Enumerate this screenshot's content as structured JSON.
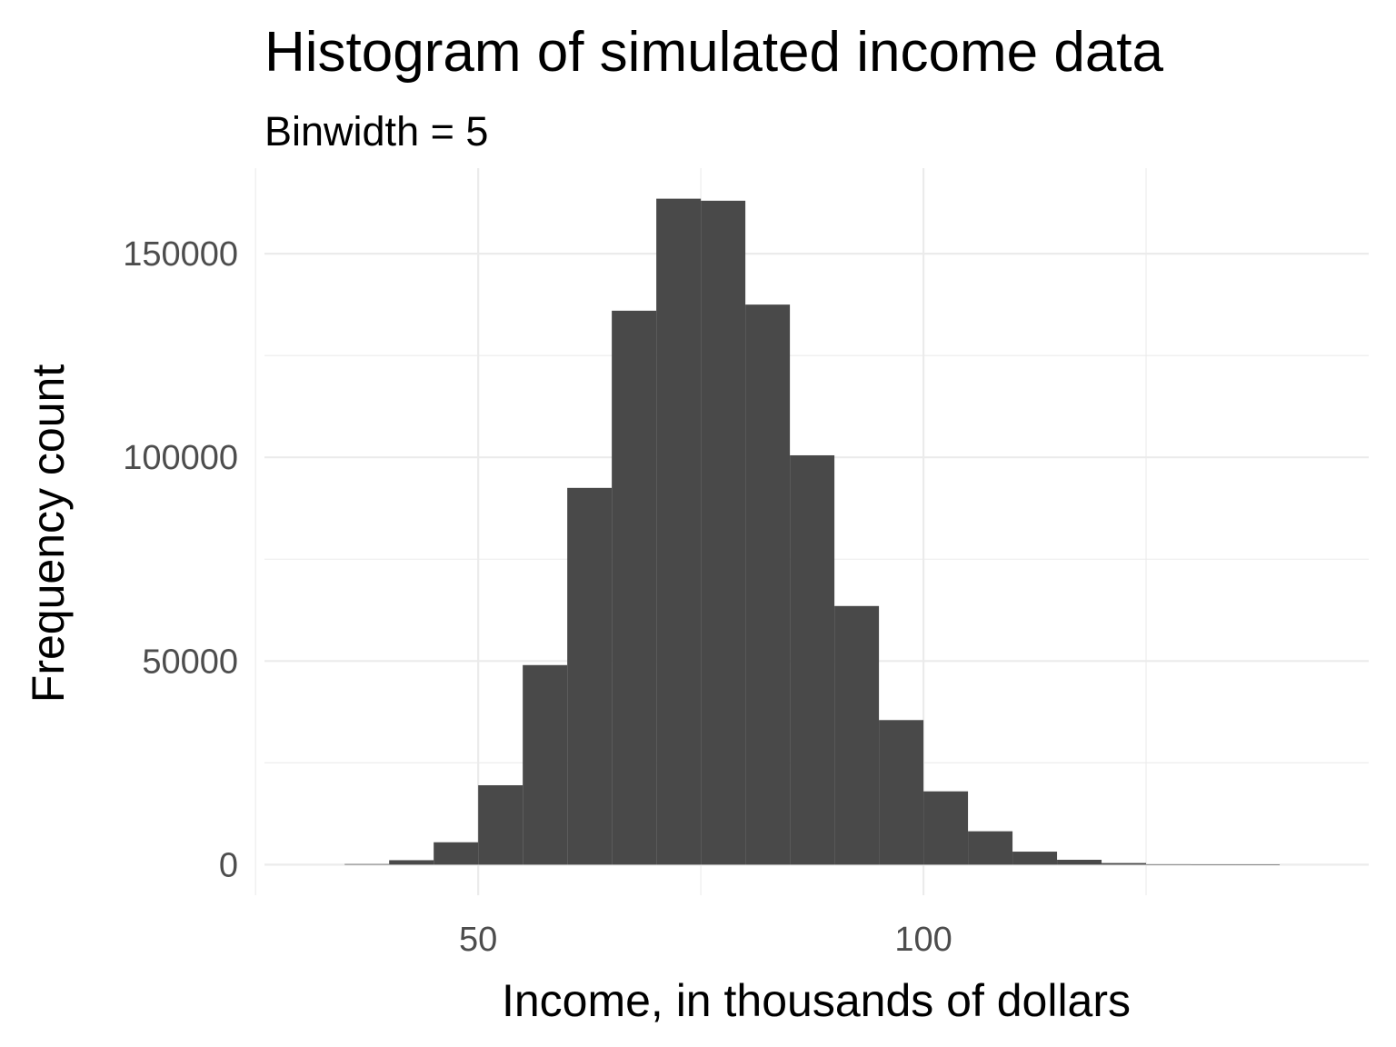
{
  "chart_data": {
    "type": "bar",
    "title": "Histogram of simulated income data",
    "subtitle": "Binwidth = 5",
    "xlabel": "Income, in thousands of dollars",
    "ylabel": "Frequency count",
    "binwidth": 5,
    "xlim": [
      26,
      150
    ],
    "ylim": [
      -7500,
      171000
    ],
    "x_ticks": [
      50,
      100
    ],
    "x_tick_labels": [
      "50",
      "100"
    ],
    "y_ticks": [
      0,
      50000,
      100000,
      150000
    ],
    "y_tick_labels": [
      "0",
      "50000",
      "100000",
      "150000"
    ],
    "x_minor": [
      25,
      75,
      125
    ],
    "y_minor": [
      25000,
      75000,
      125000
    ],
    "grid": true,
    "bar_color": "#494949",
    "bins": [
      {
        "x0": 35,
        "x1": 40,
        "count": 150
      },
      {
        "x0": 40,
        "x1": 45,
        "count": 1100
      },
      {
        "x0": 45,
        "x1": 50,
        "count": 5500
      },
      {
        "x0": 50,
        "x1": 55,
        "count": 19500
      },
      {
        "x0": 55,
        "x1": 60,
        "count": 49000
      },
      {
        "x0": 60,
        "x1": 65,
        "count": 92500
      },
      {
        "x0": 65,
        "x1": 70,
        "count": 136000
      },
      {
        "x0": 70,
        "x1": 75,
        "count": 163500
      },
      {
        "x0": 75,
        "x1": 80,
        "count": 163000
      },
      {
        "x0": 80,
        "x1": 85,
        "count": 137500
      },
      {
        "x0": 85,
        "x1": 90,
        "count": 100500
      },
      {
        "x0": 90,
        "x1": 95,
        "count": 63500
      },
      {
        "x0": 95,
        "x1": 100,
        "count": 35500
      },
      {
        "x0": 100,
        "x1": 105,
        "count": 18000
      },
      {
        "x0": 105,
        "x1": 110,
        "count": 8200
      },
      {
        "x0": 110,
        "x1": 115,
        "count": 3200
      },
      {
        "x0": 115,
        "x1": 120,
        "count": 1200
      },
      {
        "x0": 120,
        "x1": 125,
        "count": 400
      },
      {
        "x0": 125,
        "x1": 130,
        "count": 100
      },
      {
        "x0": 130,
        "x1": 135,
        "count": 30
      },
      {
        "x0": 135,
        "x1": 140,
        "count": 10
      }
    ]
  }
}
